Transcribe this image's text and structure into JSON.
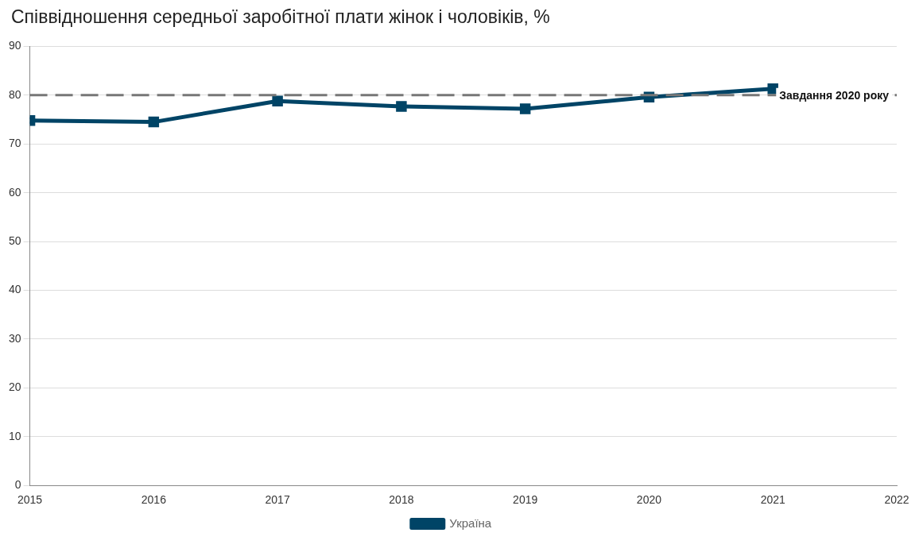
{
  "chart_data": {
    "type": "line",
    "title": "Співвідношення середньої заробітної плати жінок і чоловіків, %",
    "x": [
      2015,
      2016,
      2017,
      2018,
      2019,
      2020,
      2021
    ],
    "series": [
      {
        "name": "Україна",
        "color": "#004466",
        "values": [
          74.8,
          74.5,
          78.8,
          77.7,
          77.2,
          79.6,
          81.3
        ]
      }
    ],
    "xlim": [
      2015,
      2022
    ],
    "xticks": [
      2015,
      2016,
      2017,
      2018,
      2019,
      2020,
      2021,
      2022
    ],
    "ylim": [
      0,
      90
    ],
    "yticks": [
      0,
      10,
      20,
      30,
      40,
      50,
      60,
      70,
      80,
      90
    ],
    "ref_lines": [
      {
        "axis": "y",
        "value": 80,
        "label": "Завдання 2020 року",
        "color": "#777777",
        "line_style": "dashed"
      }
    ],
    "grid": "y",
    "legend": "bottom",
    "marker": "square",
    "line_style": "solid"
  }
}
